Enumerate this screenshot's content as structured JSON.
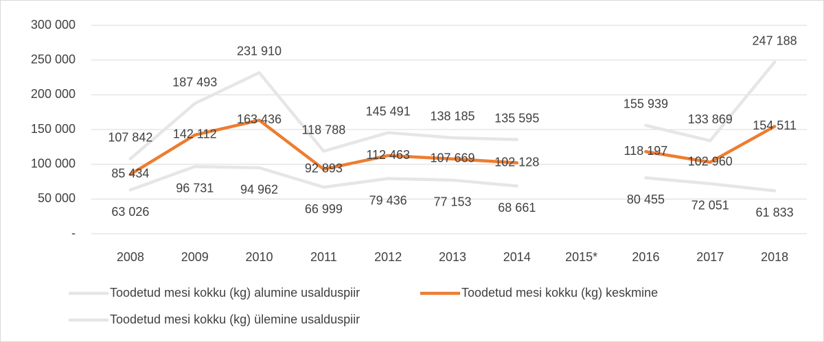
{
  "chart_data": {
    "type": "line",
    "categories": [
      "2008",
      "2009",
      "2010",
      "2011",
      "2012",
      "2013",
      "2014",
      "2015*",
      "2016",
      "2017",
      "2018"
    ],
    "series": [
      {
        "name": "Toodetud mesi kokku (kg) alumine usalduspiir",
        "color": "#e6e6e6",
        "values": [
          63026,
          96731,
          94962,
          66999,
          79436,
          77153,
          68661,
          null,
          80455,
          72051,
          61833
        ],
        "value_labels": [
          "63 026",
          "96 731",
          "94 962",
          "66 999",
          "79 436",
          "77 153",
          "68 661",
          null,
          "80 455",
          "72 051",
          "61 833"
        ]
      },
      {
        "name": "Toodetud mesi kokku (kg) keskmine",
        "color": "#ed7d31",
        "values": [
          85434,
          142112,
          163436,
          92893,
          112463,
          107669,
          102128,
          null,
          118197,
          102960,
          154511
        ],
        "value_labels": [
          "85 434",
          "142 112",
          "163 436",
          "92 893",
          "112 463",
          "107 669",
          "102 128",
          null,
          "118 197",
          "102 960",
          "154 511"
        ]
      },
      {
        "name": "Toodetud mesi kokku (kg) ülemine usalduspiir",
        "color": "#e6e6e6",
        "values": [
          107842,
          187493,
          231910,
          118788,
          145491,
          138185,
          135595,
          null,
          155939,
          133869,
          247188
        ],
        "value_labels": [
          "107 842",
          "187 493",
          "231 910",
          "118 788",
          "145 491",
          "138 185",
          "135 595",
          null,
          "155 939",
          "133 869",
          "247 188"
        ]
      }
    ],
    "ylim": [
      0,
      300000
    ],
    "yticks": [
      {
        "value": 0,
        "label": "-"
      },
      {
        "value": 50000,
        "label": "50 000"
      },
      {
        "value": 100000,
        "label": "100 000"
      },
      {
        "value": 150000,
        "label": "150 000"
      },
      {
        "value": 200000,
        "label": "200 000"
      },
      {
        "value": 250000,
        "label": "250 000"
      },
      {
        "value": 300000,
        "label": "300 000"
      }
    ],
    "grid": true,
    "legend": "bottom"
  }
}
